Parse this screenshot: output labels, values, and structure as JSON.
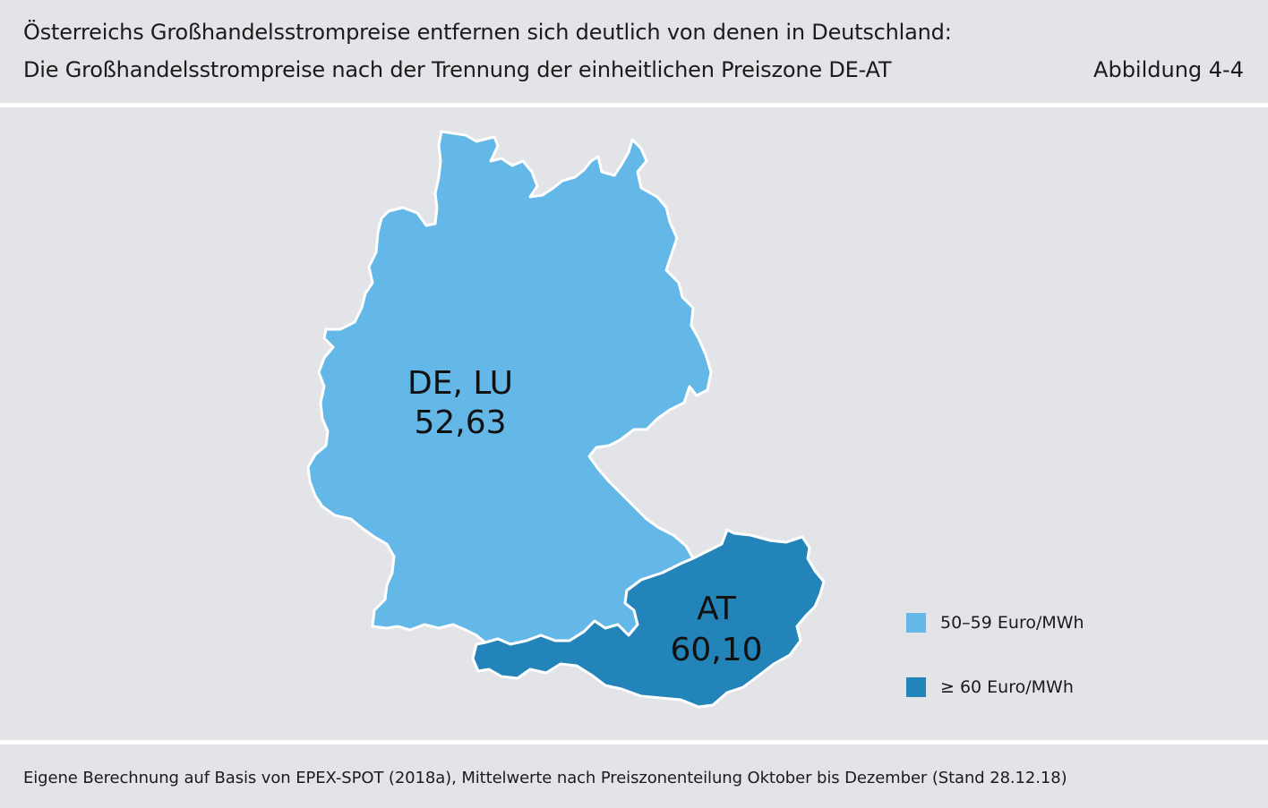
{
  "header": {
    "title_line1": "Österreichs Großhandelsstrompreise entfernen sich deutlich von denen in Deutschland:",
    "title_line2": "Die Großhandelsstrompreise nach der Trennung der einheitlichen Preiszone DE-AT",
    "figure_label": "Abbildung 4-4"
  },
  "map": {
    "regions": [
      {
        "id": "de_lu",
        "name": "DE, LU",
        "value": "52,63",
        "color": "#63b8e8"
      },
      {
        "id": "at",
        "name": "AT",
        "value": "60,10",
        "color": "#2384b9"
      }
    ]
  },
  "legend": {
    "items": [
      {
        "label": "50–59 Euro/MWh",
        "color": "#63b8e8"
      },
      {
        "label": "≥ 60 Euro/MWh",
        "color": "#2384b9"
      }
    ]
  },
  "footer": {
    "source": "Eigene Berechnung auf Basis von EPEX-SPOT (2018a), Mittelwerte nach Preiszonenteilung Oktober bis Dezember (Stand 28.12.18)"
  }
}
